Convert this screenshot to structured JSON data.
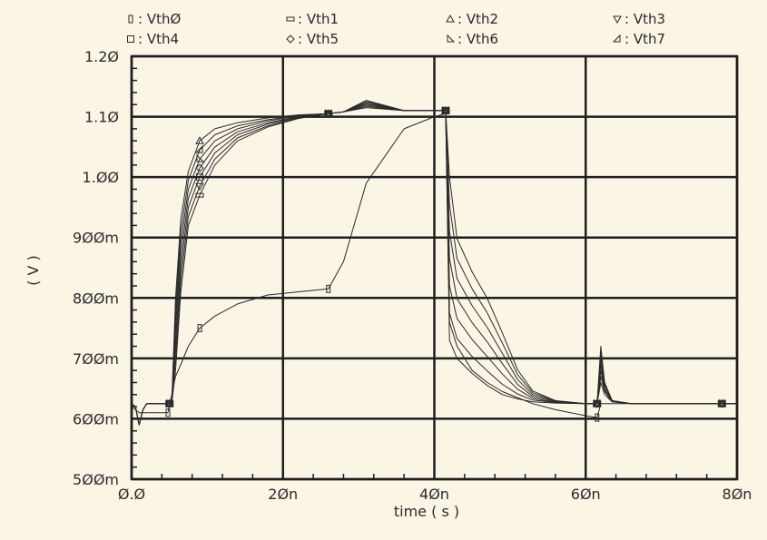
{
  "chart_data": {
    "type": "line",
    "title": "",
    "xlabel": "time ( s )",
    "ylabel": "( V )",
    "xlim": [
      0,
      80
    ],
    "ylim": [
      0.5,
      1.2
    ],
    "x_unit": "ns",
    "y_unit": "V",
    "grid": true,
    "legend_placement": "top",
    "x_ticks": [
      0,
      20,
      40,
      60,
      80
    ],
    "x_tick_labels": [
      "Ø.Ø",
      "2Øn",
      "4Øn",
      "6Øn",
      "8Øn"
    ],
    "y_ticks": [
      0.5,
      0.6,
      0.7,
      0.8,
      0.9,
      1.0,
      1.1,
      1.2
    ],
    "y_tick_labels": [
      "5ØØm",
      "6ØØm",
      "7ØØm",
      "8ØØm",
      "9ØØm",
      "1.ØØ",
      "1.1Ø",
      "1.2Ø"
    ],
    "x": [
      0,
      0.5,
      1,
      1.5,
      2,
      4.8,
      5.3,
      5.8,
      6.5,
      7.5,
      9,
      11,
      14,
      18,
      22,
      26,
      28,
      31,
      36,
      40,
      41.5,
      42,
      43,
      45,
      47,
      49,
      51,
      53,
      56,
      60,
      61.5,
      62,
      62.5,
      63.5,
      66,
      80
    ],
    "series": [
      {
        "name": "VthØ",
        "marker": "thin-rect",
        "marker_x": [
          4.8,
          9,
          26,
          61.5
        ],
        "values": [
          0.62,
          0.615,
          0.61,
          0.61,
          0.61,
          0.61,
          0.64,
          0.67,
          0.69,
          0.72,
          0.75,
          0.77,
          0.79,
          0.805,
          0.81,
          0.815,
          0.86,
          0.99,
          1.08,
          1.1,
          1.105,
          0.76,
          0.72,
          0.68,
          0.66,
          0.645,
          0.635,
          0.625,
          0.615,
          0.605,
          0.602,
          0.625,
          0.625,
          0.625,
          0.625,
          0.625
        ]
      },
      {
        "name": "Vth1",
        "marker": "flat-rect",
        "marker_x": [
          5,
          9,
          26,
          41.5,
          61.5,
          78
        ],
        "values": [
          0.625,
          0.62,
          0.59,
          0.615,
          0.625,
          0.625,
          0.625,
          0.68,
          0.81,
          0.92,
          0.97,
          1.02,
          1.06,
          1.083,
          1.097,
          1.105,
          1.108,
          1.127,
          1.11,
          1.11,
          1.11,
          1.0,
          0.898,
          0.843,
          0.799,
          0.742,
          0.681,
          0.646,
          0.63,
          0.625,
          0.625,
          0.66,
          0.64,
          0.628,
          0.625,
          0.625
        ]
      },
      {
        "name": "Vth2",
        "marker": "triangle-up",
        "marker_x": [
          5,
          9,
          26,
          41.5,
          61.5,
          78
        ],
        "values": [
          0.625,
          0.62,
          0.59,
          0.615,
          0.625,
          0.625,
          0.625,
          0.8,
          0.93,
          1.01,
          1.06,
          1.08,
          1.09,
          1.098,
          1.103,
          1.105,
          1.108,
          1.115,
          1.11,
          1.11,
          1.11,
          0.73,
          0.7,
          0.675,
          0.655,
          0.64,
          0.633,
          0.628,
          0.626,
          0.625,
          0.625,
          0.72,
          0.66,
          0.63,
          0.625,
          0.625
        ]
      },
      {
        "name": "Vth3",
        "marker": "triangle-down",
        "marker_x": [
          5,
          9,
          26,
          41.5,
          61.5,
          78
        ],
        "values": [
          0.625,
          0.62,
          0.59,
          0.615,
          0.625,
          0.625,
          0.625,
          0.7,
          0.83,
          0.935,
          0.985,
          1.03,
          1.065,
          1.085,
          1.098,
          1.105,
          1.108,
          1.125,
          1.11,
          1.11,
          1.11,
          0.955,
          0.865,
          0.815,
          0.775,
          0.725,
          0.673,
          0.643,
          0.63,
          0.625,
          0.625,
          0.67,
          0.645,
          0.628,
          0.625,
          0.625
        ]
      },
      {
        "name": "Vth4",
        "marker": "square",
        "marker_x": [
          5,
          9,
          26,
          41.5,
          61.5,
          78
        ],
        "values": [
          0.625,
          0.62,
          0.59,
          0.615,
          0.625,
          0.625,
          0.625,
          0.72,
          0.85,
          0.95,
          1.0,
          1.04,
          1.07,
          1.088,
          1.099,
          1.105,
          1.108,
          1.123,
          1.11,
          1.11,
          1.11,
          0.91,
          0.832,
          0.787,
          0.751,
          0.708,
          0.665,
          0.64,
          0.629,
          0.625,
          0.625,
          0.68,
          0.648,
          0.629,
          0.625,
          0.625
        ]
      },
      {
        "name": "Vth5",
        "marker": "diamond",
        "marker_x": [
          5,
          9,
          26,
          41.5,
          61.5,
          78
        ],
        "values": [
          0.625,
          0.62,
          0.59,
          0.615,
          0.625,
          0.625,
          0.625,
          0.74,
          0.87,
          0.965,
          1.015,
          1.05,
          1.075,
          1.09,
          1.1,
          1.105,
          1.108,
          1.121,
          1.11,
          1.11,
          1.11,
          0.865,
          0.799,
          0.759,
          0.727,
          0.691,
          0.657,
          0.637,
          0.628,
          0.625,
          0.625,
          0.69,
          0.65,
          0.629,
          0.625,
          0.625
        ]
      },
      {
        "name": "Vth6",
        "marker": "triangle-right",
        "marker_x": [
          5,
          9,
          26,
          41.5,
          61.5,
          78
        ],
        "values": [
          0.625,
          0.62,
          0.59,
          0.615,
          0.625,
          0.625,
          0.625,
          0.76,
          0.89,
          0.98,
          1.03,
          1.06,
          1.08,
          1.093,
          1.101,
          1.105,
          1.108,
          1.119,
          1.11,
          1.11,
          1.11,
          0.82,
          0.766,
          0.731,
          0.703,
          0.674,
          0.649,
          0.634,
          0.627,
          0.625,
          0.625,
          0.7,
          0.655,
          0.63,
          0.625,
          0.625
        ]
      },
      {
        "name": "Vth7",
        "marker": "triangle-left",
        "marker_x": [
          5,
          9,
          26,
          41.5,
          61.5,
          78
        ],
        "values": [
          0.625,
          0.62,
          0.59,
          0.615,
          0.625,
          0.625,
          0.625,
          0.78,
          0.91,
          0.995,
          1.045,
          1.07,
          1.085,
          1.095,
          1.102,
          1.105,
          1.108,
          1.117,
          1.11,
          1.11,
          1.11,
          0.775,
          0.733,
          0.703,
          0.679,
          0.657,
          0.641,
          0.631,
          0.627,
          0.625,
          0.625,
          0.71,
          0.658,
          0.63,
          0.625,
          0.625
        ]
      }
    ],
    "colors": {
      "background": "#fbf5e6",
      "grid": "#1e1e1e",
      "trace": "#2a2a2a"
    }
  }
}
